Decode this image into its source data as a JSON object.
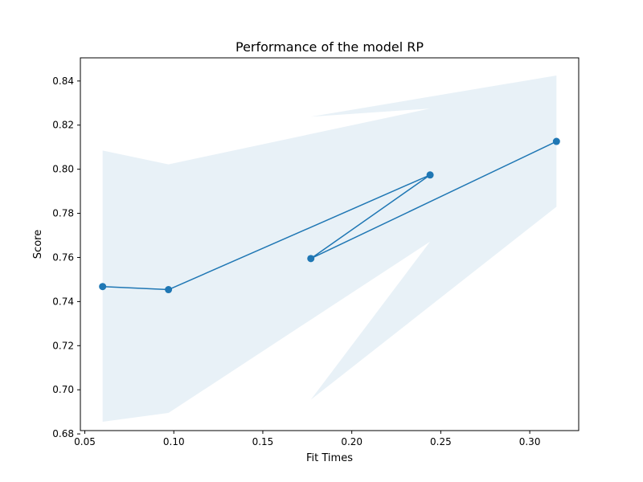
{
  "chart_data": {
    "type": "line",
    "title": "Performance of the model RP",
    "xlabel": "Fit Times",
    "ylabel": "Score",
    "xlim": [
      0.0475,
      0.3275
    ],
    "ylim": [
      0.6815,
      0.8505
    ],
    "xticks": [
      0.05,
      0.1,
      0.15,
      0.2,
      0.25,
      0.3
    ],
    "xtick_labels": [
      "0.05",
      "0.10",
      "0.15",
      "0.20",
      "0.25",
      "0.30"
    ],
    "yticks": [
      0.68,
      0.7,
      0.72,
      0.74,
      0.76,
      0.78,
      0.8,
      0.82,
      0.84
    ],
    "ytick_labels": [
      "0.68",
      "0.70",
      "0.72",
      "0.74",
      "0.76",
      "0.78",
      "0.80",
      "0.82",
      "0.84"
    ],
    "grid": false,
    "series": [
      {
        "x": [
          0.06,
          0.097,
          0.244,
          0.177,
          0.315
        ],
        "y": [
          0.7468,
          0.7454,
          0.7974,
          0.7595,
          0.8126
        ],
        "y_upper": [
          0.8085,
          0.8022,
          0.8275,
          0.8238,
          0.8425
        ],
        "y_lower": [
          0.6855,
          0.6895,
          0.7672,
          0.6955,
          0.783
        ],
        "color": "#1f77b4",
        "band_color": "#1f77b4",
        "band_opacity": 0.1,
        "marker": "circle"
      }
    ]
  }
}
